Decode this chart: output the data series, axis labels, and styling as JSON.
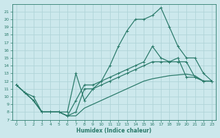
{
  "xlabel": "Humidex (Indice chaleur)",
  "background_color": "#cce8ec",
  "grid_color": "#b0d4d8",
  "line_color": "#2a7a6a",
  "xlim": [
    -0.5,
    23.5
  ],
  "ylim": [
    7,
    22
  ],
  "xticks": [
    0,
    1,
    2,
    3,
    4,
    5,
    6,
    7,
    8,
    9,
    10,
    11,
    12,
    13,
    14,
    15,
    16,
    17,
    18,
    19,
    20,
    21,
    22,
    23
  ],
  "yticks": [
    7,
    8,
    9,
    10,
    11,
    12,
    13,
    14,
    15,
    16,
    17,
    18,
    19,
    20,
    21
  ],
  "line_big_x": [
    0,
    2,
    3,
    4,
    5,
    6,
    7,
    8,
    9,
    10,
    11,
    12,
    13,
    14,
    15,
    16,
    17,
    18,
    19,
    20,
    21,
    22,
    23
  ],
  "line_big_y": [
    11.5,
    9.5,
    8.0,
    8.0,
    8.0,
    8.0,
    13.0,
    9.5,
    11.0,
    12.0,
    14.0,
    16.5,
    18.5,
    20.0,
    20.0,
    20.5,
    21.5,
    19.0,
    16.5,
    15.0,
    15.0,
    13.0,
    12.0
  ],
  "line_mid1_x": [
    0,
    1,
    2,
    3,
    4,
    5,
    6,
    7,
    8,
    9,
    10,
    11,
    12,
    13,
    14,
    15,
    16,
    17,
    18,
    19,
    20,
    21,
    22,
    23
  ],
  "line_mid1_y": [
    11.5,
    10.5,
    10.0,
    8.0,
    8.0,
    8.0,
    7.5,
    9.5,
    11.5,
    11.5,
    12.0,
    12.5,
    13.0,
    13.5,
    14.0,
    14.5,
    16.5,
    15.0,
    14.5,
    14.5,
    14.5,
    12.5,
    12.0,
    12.0
  ],
  "line_mid2_x": [
    0,
    1,
    2,
    3,
    4,
    5,
    6,
    7,
    8,
    9,
    10,
    11,
    12,
    13,
    14,
    15,
    16,
    17,
    18,
    19,
    20,
    21,
    22,
    23
  ],
  "line_mid2_y": [
    11.5,
    10.5,
    9.5,
    8.0,
    8.0,
    8.0,
    7.5,
    8.0,
    11.0,
    11.0,
    11.5,
    12.0,
    12.5,
    13.0,
    13.5,
    14.0,
    14.5,
    14.5,
    14.5,
    15.0,
    12.5,
    12.5,
    12.0,
    12.0
  ],
  "line_low_x": [
    0,
    1,
    2,
    3,
    4,
    5,
    6,
    7,
    8,
    9,
    10,
    11,
    12,
    13,
    14,
    15,
    16,
    17,
    18,
    19,
    20,
    21,
    22,
    23
  ],
  "line_low_y": [
    11.5,
    10.5,
    9.5,
    8.0,
    8.0,
    8.0,
    7.5,
    7.5,
    8.5,
    9.0,
    9.5,
    10.0,
    10.5,
    11.0,
    11.5,
    12.0,
    12.3,
    12.5,
    12.7,
    12.8,
    12.9,
    12.7,
    12.0,
    12.0
  ]
}
